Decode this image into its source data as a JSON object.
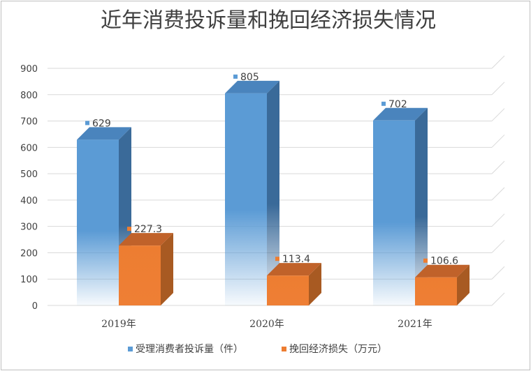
{
  "chart_data": {
    "type": "bar",
    "title": "近年消费投诉量和挽回经济损失情况",
    "categories": [
      "2019年",
      "2020年",
      "2021年"
    ],
    "series": [
      {
        "name": "受理消费者投诉量（件）",
        "values": [
          629,
          805,
          702
        ],
        "color": "#5b9bd5"
      },
      {
        "name": "挽回经济损失（万元）",
        "values": [
          227.3,
          113.4,
          106.6
        ],
        "color": "#ed7d31"
      }
    ],
    "data_labels": {
      "0": [
        "629",
        "805",
        "702"
      ],
      "1": [
        "227.3",
        "113.4",
        "106.6"
      ]
    },
    "ylim": [
      0,
      900
    ],
    "yticks": [
      "0",
      "100",
      "200",
      "300",
      "400",
      "500",
      "600",
      "700",
      "800",
      "900"
    ],
    "xlabel": "",
    "ylabel": "",
    "grid": true,
    "legend": "bottom",
    "style": "3d-column"
  }
}
